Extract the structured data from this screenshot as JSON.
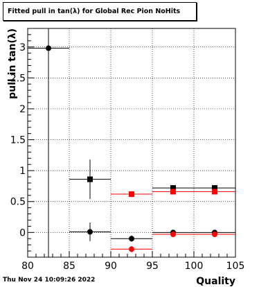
{
  "title": "Fitted pull in tan(λ) for Global Rec Pion NoHits",
  "timestamp": "Thu Nov 24 10:09:26 2022",
  "chart_data": {
    "type": "scatter",
    "title": "Fitted pull in tan(λ) for Global Rec Pion NoHits",
    "xlabel": "Quality",
    "ylabel": "pull in tan(λ)",
    "xlim": [
      80,
      105
    ],
    "ylim": [
      -0.4,
      3.3
    ],
    "grid": true,
    "x_ticks": [
      "80",
      "85",
      "90",
      "95",
      "100",
      "105"
    ],
    "y_ticks": [
      "0",
      "0.5",
      "1",
      "1.5",
      "2",
      "2.5",
      "3"
    ],
    "series": [
      {
        "marker": "circle",
        "color": "#000000",
        "points": [
          {
            "x": 82.5,
            "y": 2.98,
            "xerr": 2.5,
            "yerr_low": 3.4,
            "yerr_high": 0.4
          },
          {
            "x": 87.5,
            "y": 0.01,
            "xerr": 2.5,
            "yerr": 0.15
          },
          {
            "x": 92.5,
            "y": -0.1,
            "xerr": 2.5,
            "yerr": 0.05
          },
          {
            "x": 97.5,
            "y": 0.0,
            "xerr": 2.5,
            "yerr": 0.03
          },
          {
            "x": 102.5,
            "y": 0.0,
            "xerr": 2.5,
            "yerr": 0.03
          }
        ]
      },
      {
        "marker": "square",
        "color": "#000000",
        "points": [
          {
            "x": 87.5,
            "y": 0.86,
            "xerr": 2.5,
            "yerr": 0.32
          },
          {
            "x": 97.5,
            "y": 0.72,
            "xerr": 2.5,
            "yerr": 0.03
          },
          {
            "x": 102.5,
            "y": 0.72,
            "xerr": 2.5,
            "yerr": 0.03
          }
        ]
      },
      {
        "marker": "circle",
        "color": "#ff0000",
        "points": [
          {
            "x": 92.5,
            "y": -0.27,
            "xerr": 2.5,
            "yerr": 0.05
          },
          {
            "x": 97.5,
            "y": -0.03,
            "xerr": 2.5,
            "yerr": 0.02
          },
          {
            "x": 102.5,
            "y": -0.03,
            "xerr": 2.5,
            "yerr": 0.02
          }
        ]
      },
      {
        "marker": "square",
        "color": "#ff0000",
        "points": [
          {
            "x": 92.5,
            "y": 0.62,
            "xerr": 2.5,
            "yerr": 0.05
          },
          {
            "x": 97.5,
            "y": 0.66,
            "xerr": 2.5,
            "yerr": 0.03
          },
          {
            "x": 102.5,
            "y": 0.66,
            "xerr": 2.5,
            "yerr": 0.03
          }
        ]
      }
    ]
  }
}
